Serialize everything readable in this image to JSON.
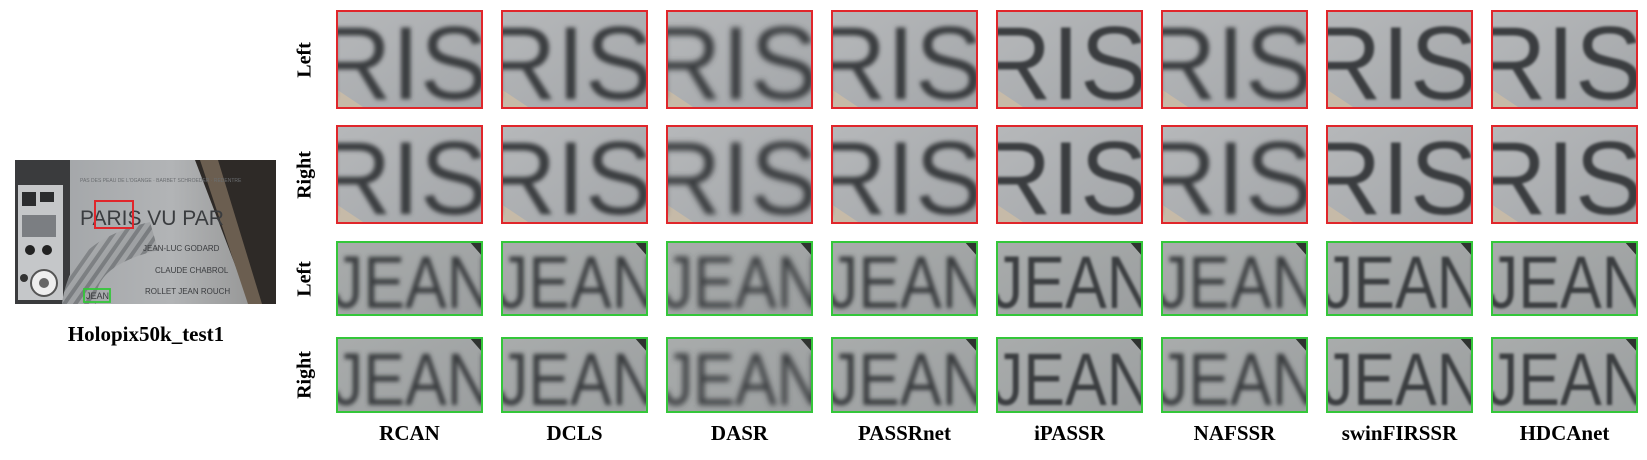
{
  "overview": {
    "caption": "Holopix50k_test1",
    "sign_lines": [
      "PARIS VU PAR",
      "JEAN-LUC GODARD",
      "CLAUDE CHABROL",
      "ROLLET JEAN ROUCH"
    ],
    "highlight_red_text": "RIS",
    "highlight_green_text": "JEAN"
  },
  "rows": [
    {
      "label": "Left",
      "crop_text": "RIS",
      "frame_color": "#e0262b"
    },
    {
      "label": "Right",
      "crop_text": "RIS",
      "frame_color": "#e0262b"
    },
    {
      "label": "Left",
      "crop_text": "JEAN",
      "frame_color": "#34c63a"
    },
    {
      "label": "Right",
      "crop_text": "JEAN",
      "frame_color": "#34c63a"
    }
  ],
  "methods": [
    "RCAN",
    "DCLS",
    "DASR",
    "PASSRnet",
    "iPASSR",
    "NAFSSR",
    "swinFIRSSR",
    "HDCAnet"
  ]
}
